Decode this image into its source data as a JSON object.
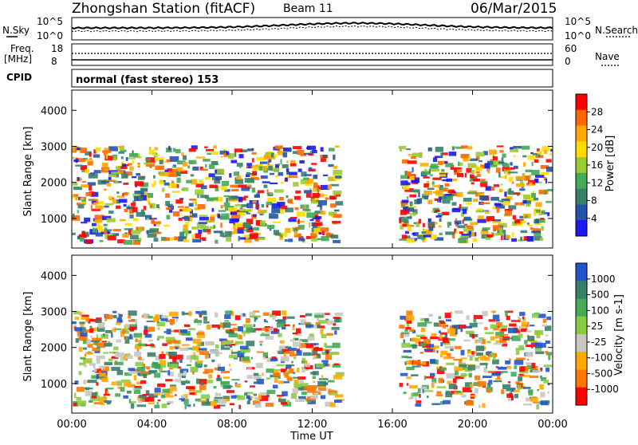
{
  "header": {
    "station": "Zhongshan Station (fitACF)",
    "beam": "Beam 11",
    "date": "06/Mar/2015"
  },
  "noise_panel": {
    "left_label": "N.Sky",
    "right_label": "N.Search",
    "left_ticks": [
      "10^5",
      "10^0"
    ],
    "right_ticks": [
      "10^5",
      "10^0"
    ]
  },
  "freq_panel": {
    "left_label_1": "Freq.",
    "left_label_2": "[MHz]",
    "left_ticks": [
      "18",
      "8"
    ],
    "right_label": "Nave",
    "right_ticks": [
      "60",
      "0"
    ]
  },
  "cpid": {
    "label": "CPID",
    "value": "normal (fast stereo) 153"
  },
  "chart_data": [
    {
      "type": "heatmap",
      "name": "power",
      "ylabel": "Slant Range [km]",
      "ylim": [
        180,
        4560
      ],
      "yticks": [
        "4000",
        "3000",
        "2000",
        "1000"
      ],
      "colorbar_label": "Power [dB]",
      "colorbar_ticks": [
        "28",
        "24",
        "20",
        "16",
        "12",
        "8",
        "4"
      ],
      "colorbar_colors": [
        "#ff0000",
        "#ff6600",
        "#ffaa00",
        "#ffdd00",
        "#99cc33",
        "#44aa55",
        "#3a7f6a",
        "#2255aa",
        "#1a1aee"
      ]
    },
    {
      "type": "heatmap",
      "name": "velocity",
      "ylabel": "Slant Range [km]",
      "ylim": [
        180,
        4560
      ],
      "yticks": [
        "4000",
        "3000",
        "2000",
        "1000"
      ],
      "colorbar_label": "Velocity [m s-1]",
      "colorbar_ticks": [
        "1000",
        "500",
        "100",
        "25",
        "-25",
        "-100",
        "-500",
        "-1000"
      ],
      "colorbar_colors": [
        "#2255cc",
        "#3a7f6a",
        "#44aa55",
        "#88cc44",
        "#c8c8c0",
        "#ffaa00",
        "#ff7700",
        "#ff0000"
      ]
    }
  ],
  "x_axis": {
    "label": "Time UT",
    "ticks": [
      "00:00",
      "04:00",
      "08:00",
      "12:00",
      "16:00",
      "20:00",
      "00:00"
    ]
  }
}
